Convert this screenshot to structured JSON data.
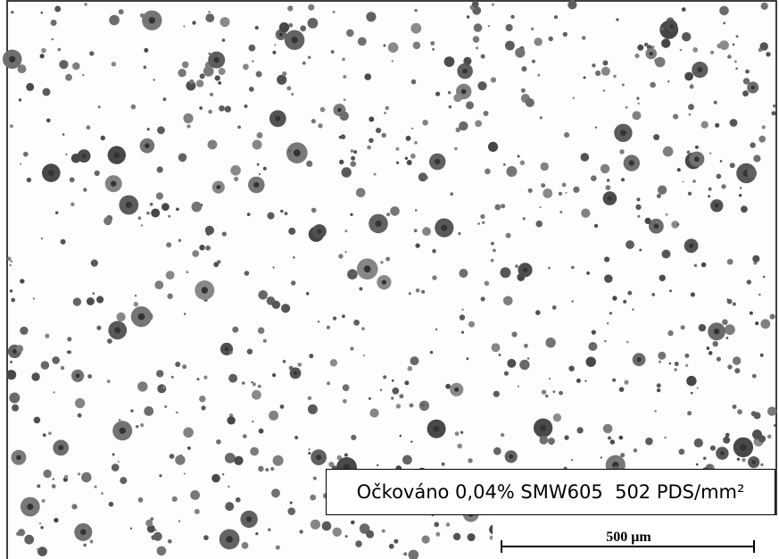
{
  "caption": "Očkováno 0,04% SMW605  502 PDS/mm²",
  "scale_bar": {
    "label": "500 μm"
  }
}
